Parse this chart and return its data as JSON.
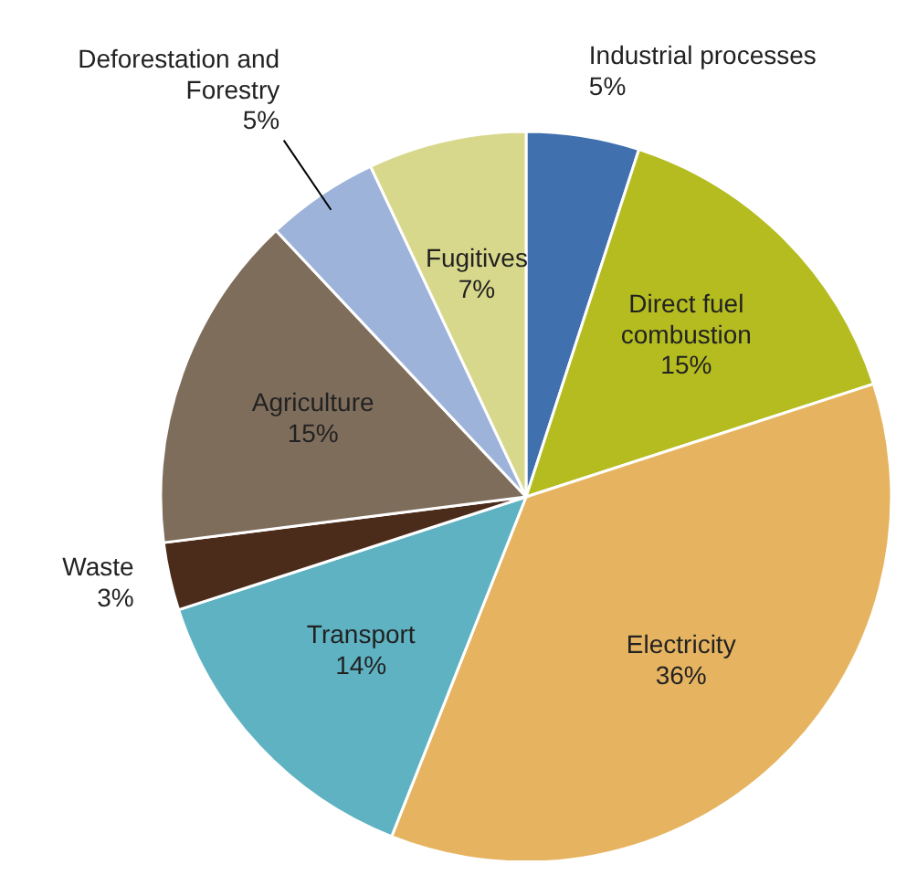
{
  "chart_data": {
    "type": "pie",
    "categories": [
      "Industrial processes",
      "Direct fuel combustion",
      "Electricity",
      "Transport",
      "Waste",
      "Agriculture",
      "Deforestation and Forestry",
      "Fugitives"
    ],
    "values": [
      5,
      15,
      36,
      14,
      3,
      15,
      5,
      7
    ],
    "value_labels": [
      "5%",
      "15%",
      "36%",
      "14%",
      "3%",
      "15%",
      "5%",
      "7%"
    ],
    "colors": [
      "#4070ad",
      "#b4bc1f",
      "#e6b460",
      "#5eb2c2",
      "#4b2b1a",
      "#7f6d5c",
      "#9db3d9",
      "#d8d88c"
    ]
  }
}
